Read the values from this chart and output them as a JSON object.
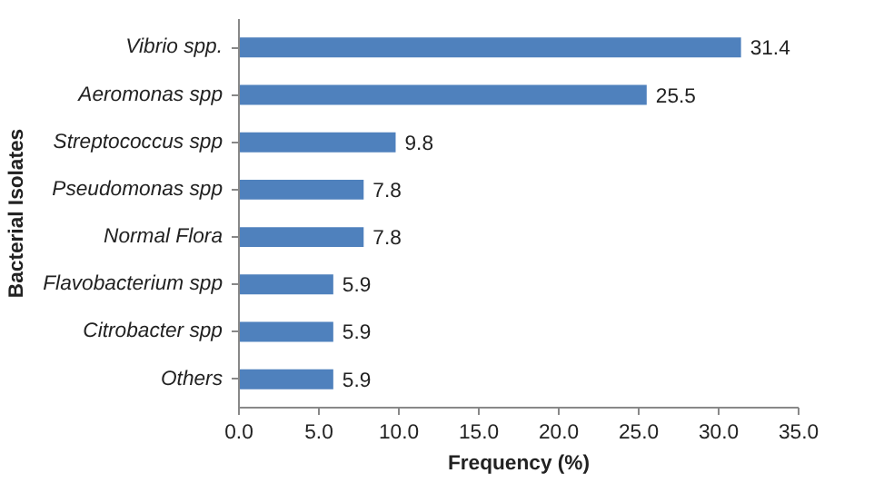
{
  "chart_data": {
    "type": "bar",
    "orientation": "horizontal",
    "xlabel": "Frequency (%)",
    "ylabel": "Bacterial Isolates",
    "categories": [
      "Vibrio spp.",
      "Aeromonas spp",
      "Streptococcus spp",
      "Pseudomonas spp",
      "Normal Flora",
      "Flavobacterium spp",
      "Citrobacter spp",
      "Others"
    ],
    "values": [
      31.4,
      25.5,
      9.8,
      7.8,
      7.8,
      5.9,
      5.9,
      5.9
    ],
    "color": "#4f81bd",
    "xlim": [
      0,
      35
    ],
    "xticks": [
      {
        "value": 0,
        "label": "0.0"
      },
      {
        "value": 5,
        "label": "5.0"
      },
      {
        "value": 10,
        "label": "10.0"
      },
      {
        "value": 15,
        "label": "15.0"
      },
      {
        "value": 20,
        "label": "20.0"
      },
      {
        "value": 25,
        "label": "25.0"
      },
      {
        "value": 30,
        "label": "30.0"
      },
      {
        "value": 35,
        "label": "35.0"
      }
    ],
    "grid": false,
    "data_labels": true
  }
}
